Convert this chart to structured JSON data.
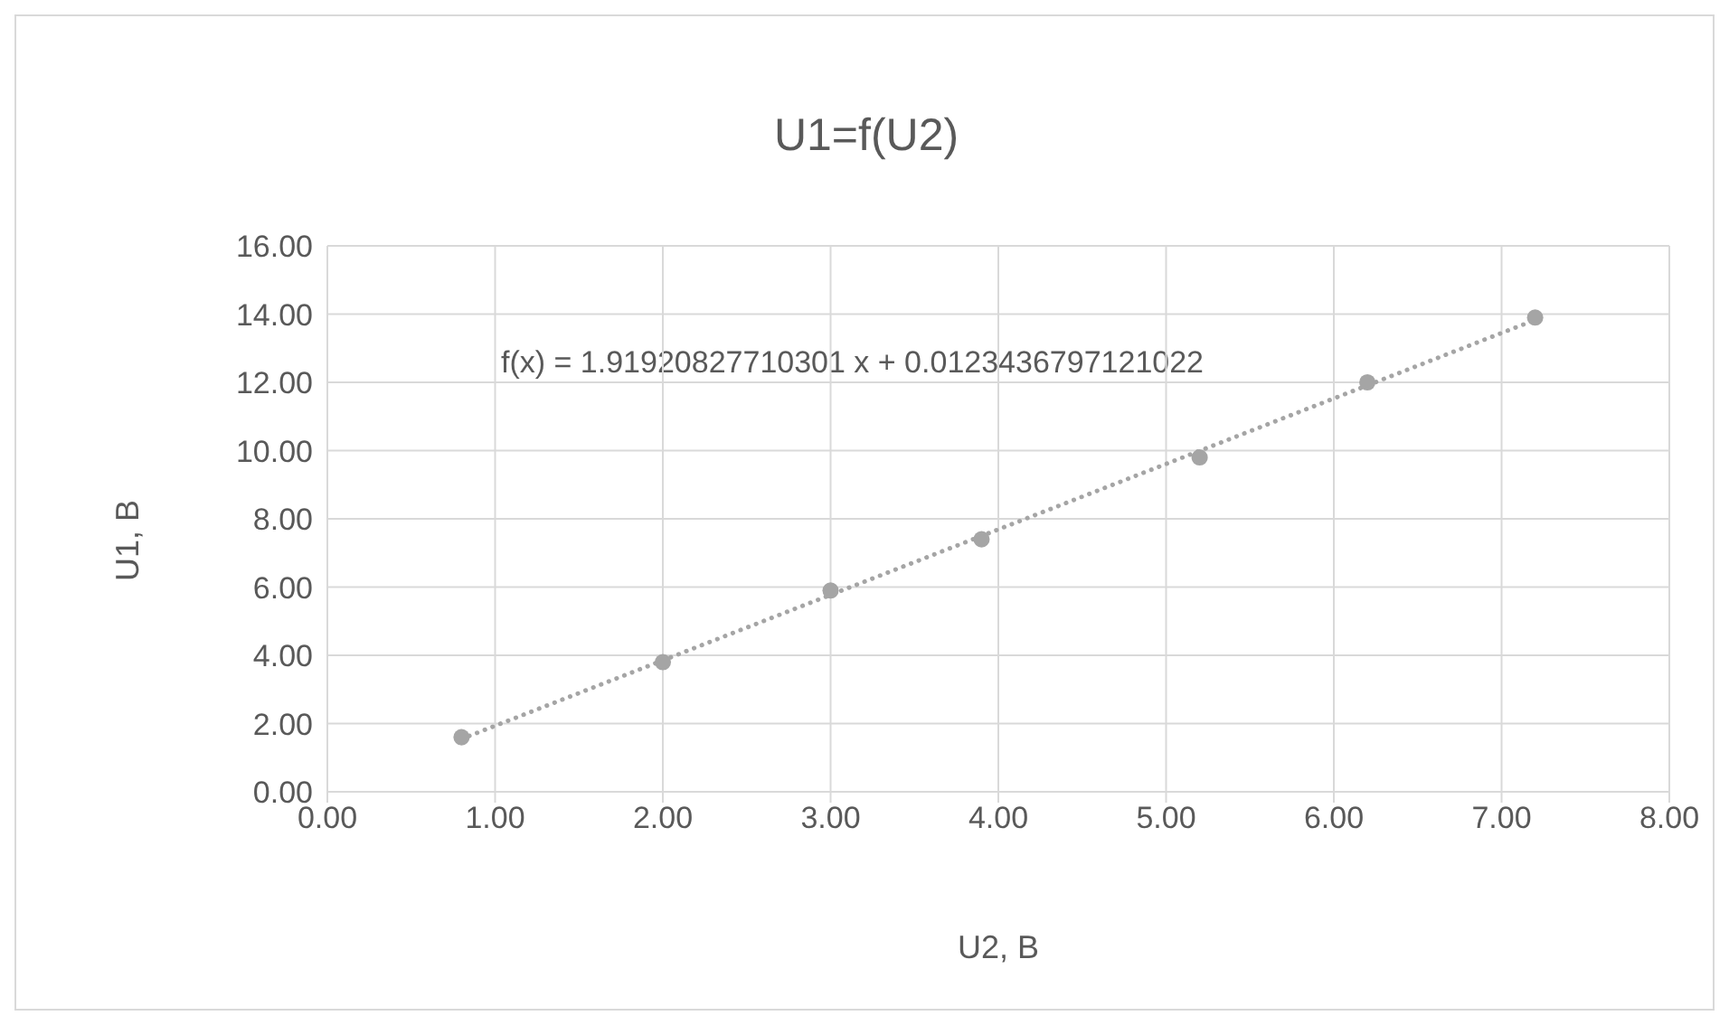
{
  "chart_data": {
    "type": "scatter",
    "title": "U1=f(U2)",
    "xlabel": "U2, B",
    "ylabel": "U1, B",
    "annotations": [
      "f(x) = 1.91920827710301 x + 0.0123436797121022"
    ],
    "xlim": [
      0,
      8
    ],
    "xticks": [
      {
        "value": 0,
        "label": "0.00"
      },
      {
        "value": 1,
        "label": "1.00"
      },
      {
        "value": 2,
        "label": "2.00"
      },
      {
        "value": 3,
        "label": "3.00"
      },
      {
        "value": 4,
        "label": "4.00"
      },
      {
        "value": 5,
        "label": "5.00"
      },
      {
        "value": 6,
        "label": "6.00"
      },
      {
        "value": 7,
        "label": "7.00"
      },
      {
        "value": 8,
        "label": "8.00"
      }
    ],
    "ylim": [
      0,
      16
    ],
    "yticks": [
      {
        "value": 0,
        "label": "0.00"
      },
      {
        "value": 2,
        "label": "2.00"
      },
      {
        "value": 4,
        "label": "4.00"
      },
      {
        "value": 6,
        "label": "6.00"
      },
      {
        "value": 8,
        "label": "8.00"
      },
      {
        "value": 10,
        "label": "10.00"
      },
      {
        "value": 12,
        "label": "12.00"
      },
      {
        "value": 14,
        "label": "14.00"
      },
      {
        "value": 16,
        "label": "16.00"
      }
    ],
    "grid": true,
    "marker": "circle",
    "series": [
      {
        "color": "#a5a5a5",
        "x": [
          0.8,
          2.0,
          3.0,
          3.9,
          5.2,
          6.2,
          7.2
        ],
        "values": [
          1.6,
          3.8,
          5.9,
          7.4,
          9.8,
          12.0,
          13.9
        ]
      },
      {
        "type": "line",
        "color": "#a5a5a5",
        "line_style": "dotted",
        "marker": "none",
        "x": [
          0.8,
          7.2
        ],
        "values": [
          1.55,
          13.83
        ]
      }
    ]
  }
}
